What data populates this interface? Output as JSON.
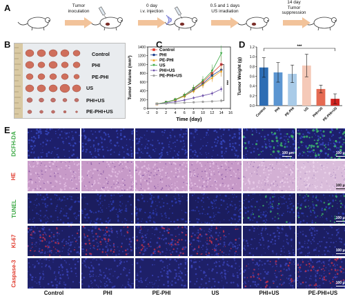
{
  "panels": {
    "a": "A",
    "b": "B",
    "c": "C",
    "d": "D",
    "e": "E"
  },
  "timeline": {
    "steps": [
      {
        "line1": "Tumor",
        "line2": "inoculation"
      },
      {
        "line1": "0 day",
        "line2": "i.v. injection"
      },
      {
        "line1": "0.5 and 1 days",
        "line2": "US irradiation"
      },
      {
        "line1": "14 day",
        "line2": "Tumor",
        "line3": "suppression"
      }
    ]
  },
  "tumor_photo": {
    "groups": [
      {
        "label": "Control",
        "color": "#2a5fb5"
      },
      {
        "label": "PHI",
        "color": "#2a5fb5"
      },
      {
        "label": "PE-PHI",
        "color": "#6aaee0"
      },
      {
        "label": "US",
        "color": "#e3332b"
      },
      {
        "label": "PHI+US",
        "color": "#c8262b"
      },
      {
        "label": "PE-PHI+US",
        "color": "#c8262b"
      }
    ]
  },
  "chart_data": [
    {
      "type": "line",
      "ylabel": "Tumor Volume (mm³)",
      "xlabel": "Time (day)",
      "xlim": [
        -2,
        16
      ],
      "ylim": [
        0,
        1400
      ],
      "xticks": [
        "-2",
        "0",
        "2",
        "4",
        "6",
        "8",
        "10",
        "12",
        "14",
        "16"
      ],
      "yticks": [
        "0",
        "200",
        "400",
        "600",
        "800",
        "1000",
        "1200",
        "1400"
      ],
      "x": [
        0,
        2,
        4,
        6,
        8,
        10,
        12,
        14
      ],
      "series": [
        {
          "name": "Control",
          "color": "#e03a2c",
          "marker": "square",
          "values": [
            100,
            140,
            200,
            300,
            450,
            600,
            800,
            1000
          ],
          "err": [
            20,
            30,
            40,
            60,
            80,
            100,
            150,
            200
          ]
        },
        {
          "name": "PHI",
          "color": "#1c3d8c",
          "marker": "circle",
          "values": [
            100,
            135,
            190,
            280,
            420,
            560,
            750,
            880
          ],
          "err": [
            20,
            25,
            35,
            50,
            70,
            90,
            120,
            150
          ]
        },
        {
          "name": "PE-PHI",
          "color": "#f2a31c",
          "marker": "triangle",
          "values": [
            100,
            140,
            195,
            280,
            400,
            540,
            700,
            850
          ],
          "err": [
            20,
            25,
            35,
            45,
            60,
            80,
            100,
            130
          ]
        },
        {
          "name": "US",
          "color": "#3aa843",
          "marker": "triangle-down",
          "values": [
            100,
            140,
            200,
            300,
            460,
            630,
            850,
            1250
          ],
          "err": [
            20,
            30,
            40,
            60,
            80,
            110,
            150,
            180
          ]
        },
        {
          "name": "PHI+US",
          "color": "#6a4da8",
          "marker": "diamond",
          "values": [
            100,
            120,
            150,
            190,
            240,
            290,
            340,
            440
          ],
          "err": [
            20,
            20,
            25,
            30,
            35,
            40,
            50,
            60
          ]
        },
        {
          "name": "PE-PHI+US",
          "color": "#a0a0a0",
          "marker": "star",
          "values": [
            100,
            110,
            120,
            130,
            140,
            150,
            160,
            175
          ],
          "err": [
            15,
            15,
            15,
            20,
            20,
            25,
            30,
            40
          ]
        }
      ],
      "significance": "***"
    },
    {
      "type": "bar",
      "ylabel": "Tumor Weight (g)",
      "ylim": [
        0,
        1.2
      ],
      "yticks": [
        "0.0",
        "0.2",
        "0.4",
        "0.6",
        "0.8",
        "1.0",
        "1.2"
      ],
      "categories": [
        "Control",
        "PHI",
        "PE-PHI",
        "US",
        "PHI+US",
        "PE-PHI+US"
      ],
      "values": [
        0.78,
        0.68,
        0.65,
        0.82,
        0.34,
        0.14
      ],
      "errors": [
        0.2,
        0.2,
        0.18,
        0.23,
        0.08,
        0.1
      ],
      "colors": [
        "#2e6db4",
        "#5b95d1",
        "#a9cbe8",
        "#f5c9b8",
        "#e56a52",
        "#d1231f"
      ],
      "significance": "***"
    }
  ],
  "staining": {
    "rows": [
      {
        "label": "DCFH-DA",
        "color": "#3aa843",
        "kind": "dcfh"
      },
      {
        "label": "HE",
        "color": "#e03a2c",
        "kind": "he"
      },
      {
        "label": "TUNEL",
        "color": "#3aa843",
        "kind": "tunel"
      },
      {
        "label": "KI-67",
        "color": "#e03a2c",
        "kind": "ki"
      },
      {
        "label": "Caspase-3",
        "color": "#e03a2c",
        "kind": "casp"
      }
    ],
    "columns": [
      "Control",
      "PHI",
      "PE-PHI",
      "US",
      "PHI+US",
      "PE-PHI+US"
    ],
    "scale_label": "100 μm"
  }
}
